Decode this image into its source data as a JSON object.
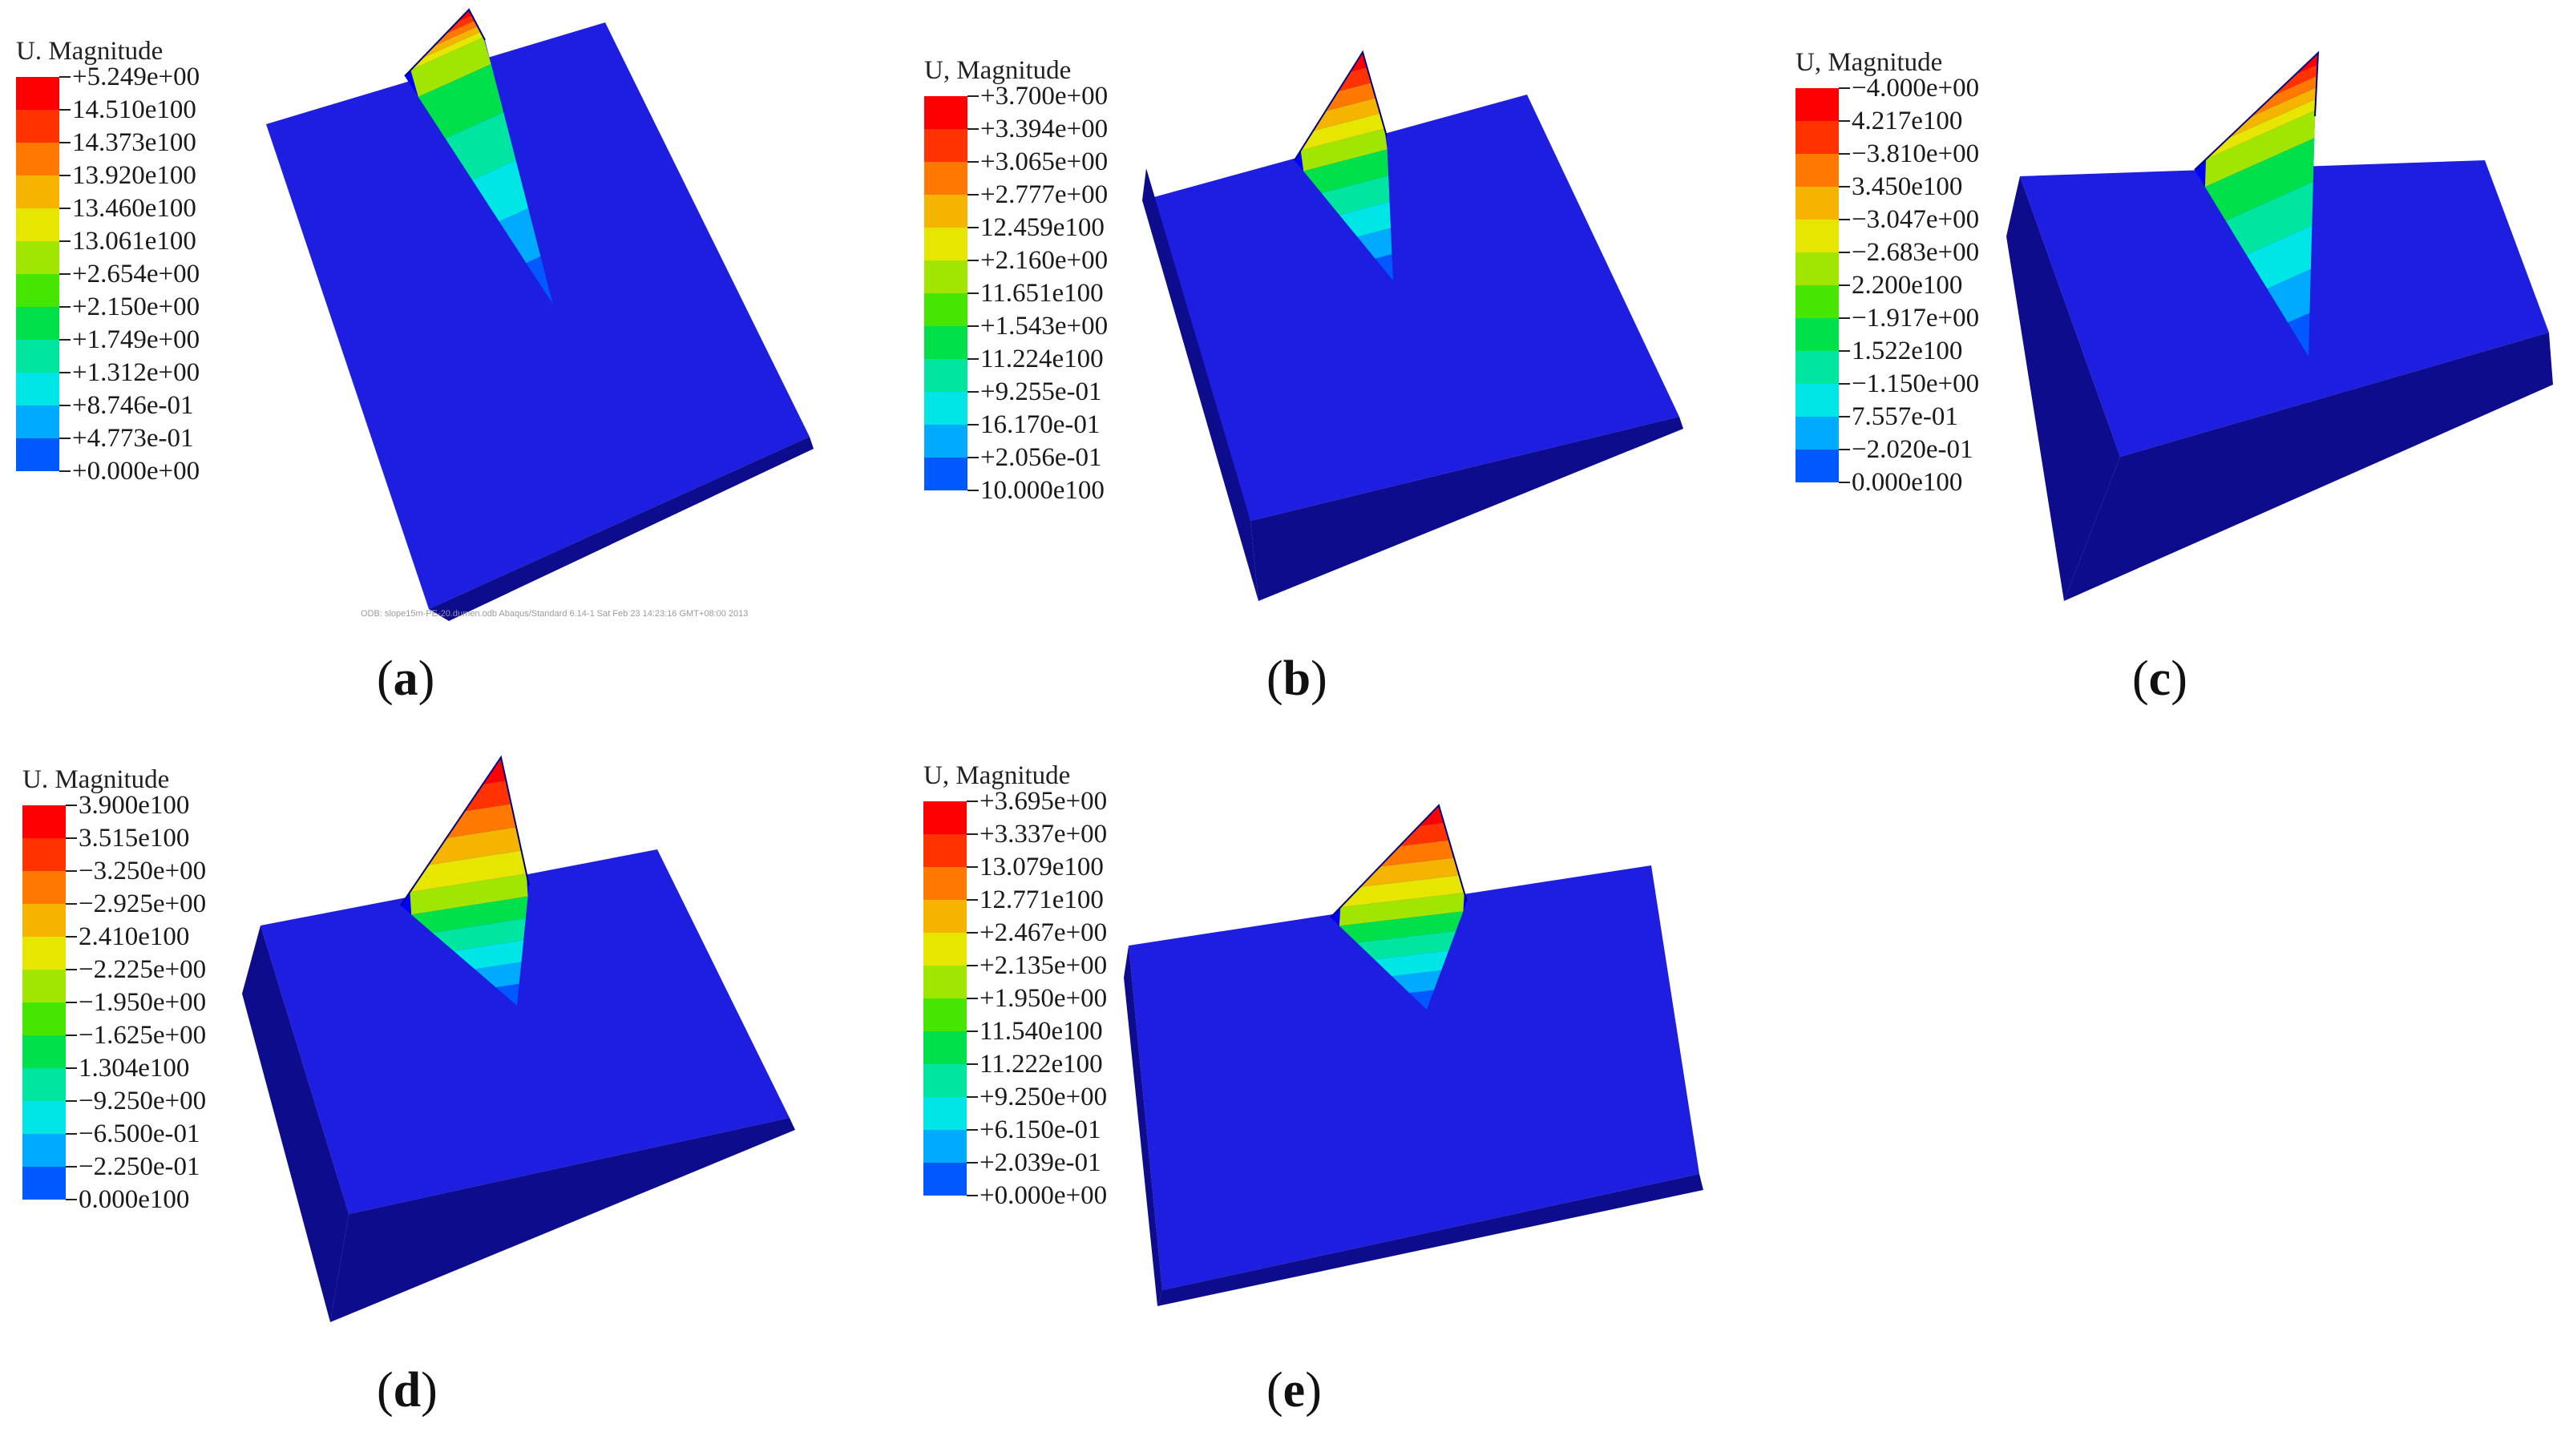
{
  "colormap": [
    "#0000ff",
    "#0058ff",
    "#00aaff",
    "#00e6e6",
    "#00e6a0",
    "#00e04a",
    "#46e600",
    "#a0e600",
    "#e6e600",
    "#f5b400",
    "#ff7800",
    "#ff3200",
    "#ff0000"
  ],
  "block_colors": {
    "top": "#1e1ee0",
    "front": "#1010b4",
    "side": "#0c0c8c"
  },
  "panels": [
    {
      "id": "a",
      "caption_open": "(",
      "caption_label": "a",
      "caption_close": ")",
      "legend_title": "U. Magnitude",
      "values": [
        "+5.249e+00",
        "14.510e100",
        "14.373e100",
        "13.920e100",
        "13.460e100",
        "13.061e100",
        "+2.654e+00",
        "+2.150e+00",
        "+1.749e+00",
        "+1.312e+00",
        "+8.746e-01",
        "+4.773e-01",
        "+0.000e+00"
      ],
      "footer": "ODB: slope15m-PE-20.dumen.odb    Abaqus/Standard 6.14-1    Sat Feb 23 14:23:16 GMT+08:00 2013"
    },
    {
      "id": "b",
      "caption_open": "(",
      "caption_label": "b",
      "caption_close": ")",
      "legend_title": "U, Magnitude",
      "values": [
        "+3.700e+00",
        "+3.394e+00",
        "+3.065e+00",
        "+2.777e+00",
        "12.459e100",
        "+2.160e+00",
        "11.651e100",
        "+1.543e+00",
        "11.224e100",
        "+9.255e-01",
        "16.170e-01",
        "+2.056e-01",
        "10.000e100"
      ]
    },
    {
      "id": "c",
      "caption_open": "(",
      "caption_label": "c",
      "caption_close": ")",
      "legend_title": "U, Magnitude",
      "values": [
        "−4.000e+00",
        "4.217e100",
        "−3.810e+00",
        "3.450e100",
        "−3.047e+00",
        "−2.683e+00",
        "2.200e100",
        "−1.917e+00",
        "1.522e100",
        "−1.150e+00",
        "7.557e-01",
        "−2.020e-01",
        "0.000e100"
      ]
    },
    {
      "id": "d",
      "caption_open": "(",
      "caption_label": "d",
      "caption_close": ")",
      "legend_title": "U. Magnitude",
      "values": [
        "3.900e100",
        "3.515e100",
        "−3.250e+00",
        "−2.925e+00",
        "2.410e100",
        "−2.225e+00",
        "−1.950e+00",
        "−1.625e+00",
        "1.304e100",
        "−9.250e+00",
        "−6.500e-01",
        "−2.250e-01",
        "0.000e100"
      ]
    },
    {
      "id": "e",
      "caption_open": "(",
      "caption_label": "e",
      "caption_close": ")",
      "legend_title": "U, Magnitude",
      "values": [
        "+3.695e+00",
        "+3.337e+00",
        "13.079e100",
        "12.771e100",
        "+2.467e+00",
        "+2.135e+00",
        "+1.950e+00",
        "11.540e100",
        "11.222e100",
        "+9.250e+00",
        "+6.150e-01",
        "+2.039e-01",
        "+0.000e+00"
      ]
    }
  ]
}
